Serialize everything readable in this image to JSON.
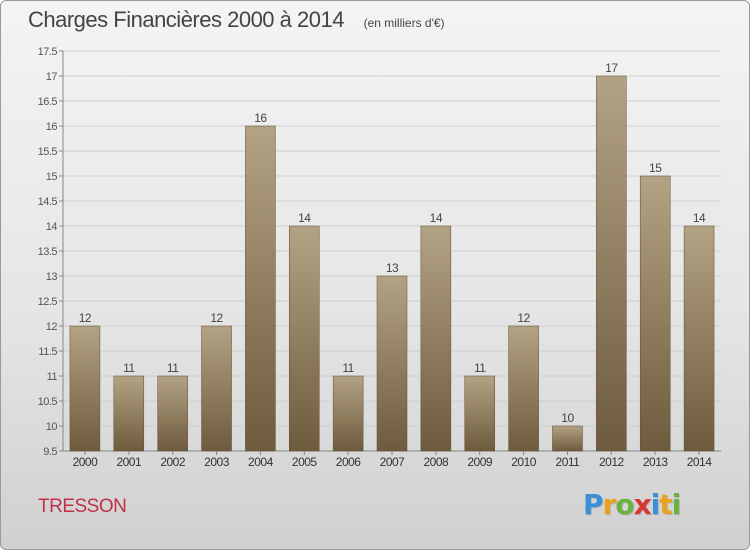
{
  "title": "Charges Financières 2000 à 2014",
  "unit_note": "(en milliers d'€)",
  "town": "TRESSON",
  "logo": {
    "text": "Proxiti",
    "letters": [
      {
        "char": "P",
        "color": "#3a8fd6"
      },
      {
        "char": "r",
        "color": "#e9a21b"
      },
      {
        "char": "o",
        "color": "#6ab23e"
      },
      {
        "char": "x",
        "color": "#d8372f"
      },
      {
        "char": "i",
        "color": "#3a8fd6"
      },
      {
        "char": "t",
        "color": "#e9a21b"
      },
      {
        "char": "i",
        "color": "#6ab23e"
      }
    ]
  },
  "colors": {
    "bar_top": "#b3a283",
    "bar_bottom": "#6e5b3d",
    "grid": "#cfcfcf",
    "axis_text": "#555555",
    "town": "#c0314a"
  },
  "chart_data": {
    "type": "bar",
    "categories": [
      "2000",
      "2001",
      "2002",
      "2003",
      "2004",
      "2005",
      "2006",
      "2007",
      "2008",
      "2009",
      "2010",
      "2011",
      "2012",
      "2013",
      "2014"
    ],
    "values": [
      12,
      11,
      11,
      12,
      16,
      14,
      11,
      13,
      14,
      11,
      12,
      10,
      17,
      15,
      14
    ],
    "data_labels": [
      "12",
      "11",
      "11",
      "12",
      "16",
      "14",
      "11",
      "13",
      "14",
      "11",
      "12",
      "10",
      "17",
      "15",
      "14"
    ],
    "ylim": [
      9.5,
      17.5
    ],
    "yticks": [
      9.5,
      10,
      10.5,
      11,
      11.5,
      12,
      12.5,
      13,
      13.5,
      14,
      14.5,
      15,
      15.5,
      16,
      16.5,
      17,
      17.5
    ],
    "ytick_labels": [
      "9.5",
      "10",
      "10.5",
      "11",
      "11.5",
      "12",
      "12.5",
      "13",
      "13.5",
      "14",
      "14.5",
      "15",
      "15.5",
      "16",
      "16.5",
      "17",
      "17.5"
    ],
    "grid": true,
    "legend": "none"
  }
}
